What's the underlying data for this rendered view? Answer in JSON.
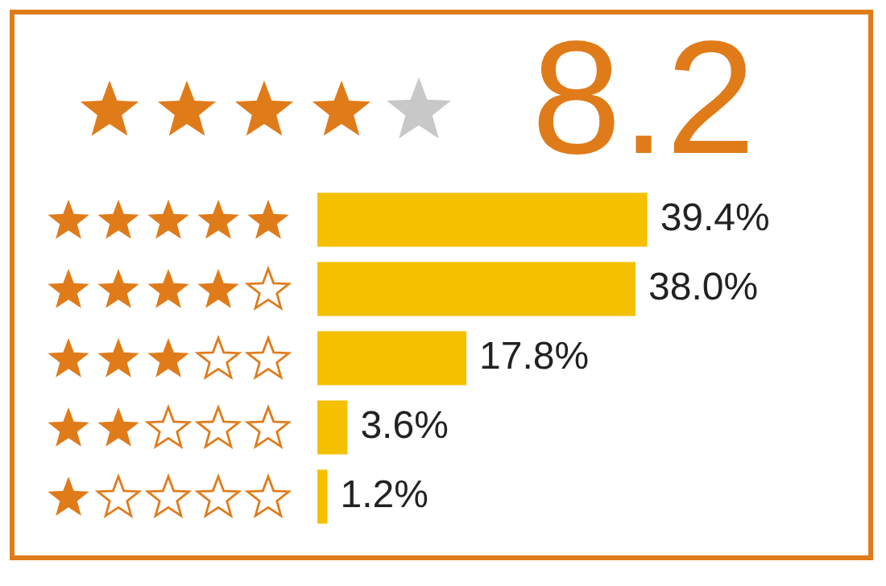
{
  "chart_data": {
    "type": "bar",
    "orientation": "horizontal",
    "title": "8.2",
    "categories": [
      null,
      null,
      null,
      null,
      null
    ],
    "values": [
      39.4,
      38.0,
      17.8,
      3.6,
      1.2
    ],
    "value_labels": [
      "39.4%",
      "38.0%",
      "17.8%",
      "3.6%",
      "1.2%"
    ],
    "color": "#f5c000"
  }
}
